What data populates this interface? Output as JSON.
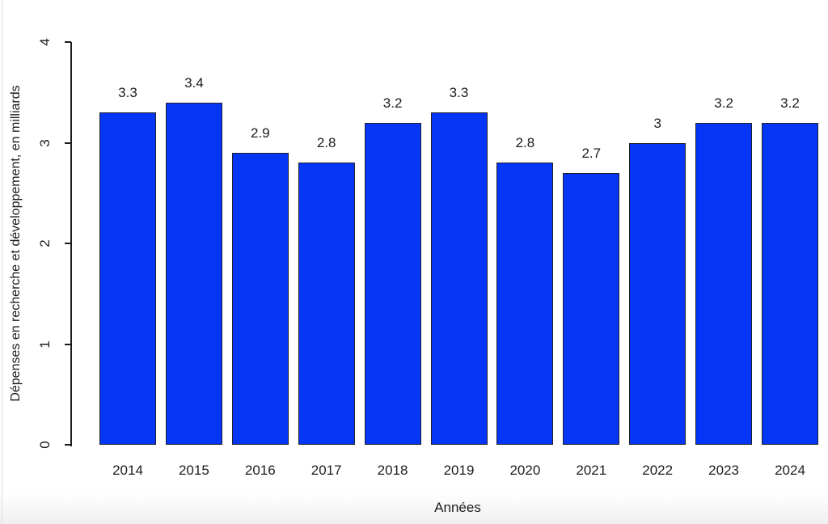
{
  "figure": {
    "background": "#ffffff",
    "bar_fill": "#0535f5",
    "bar_border": "#20202a",
    "axis_color": "#1c1c1c",
    "text_color": "#1c1c1c"
  },
  "chart_data": {
    "type": "bar",
    "title": "",
    "xlabel": "Années",
    "ylabel": "Dépenses en recherche et développement, en milliards",
    "categories": [
      "2014",
      "2015",
      "2016",
      "2017",
      "2018",
      "2019",
      "2020",
      "2021",
      "2022",
      "2023",
      "2024"
    ],
    "values": [
      3.3,
      3.4,
      2.9,
      2.8,
      3.2,
      3.3,
      2.8,
      2.7,
      3,
      3.2,
      3.2
    ],
    "bar_labels": [
      "3.3",
      "3.4",
      "2.9",
      "2.8",
      "3.2",
      "3.3",
      "2.8",
      "2.7",
      "3",
      "3.2",
      "3.2"
    ],
    "yticks": [
      0,
      1,
      2,
      3,
      4
    ],
    "ytick_labels": [
      "0",
      "1",
      "2",
      "3",
      "4"
    ],
    "ylim": [
      0,
      4
    ],
    "grid": false,
    "legend": null,
    "bar_color_name": "blue"
  }
}
